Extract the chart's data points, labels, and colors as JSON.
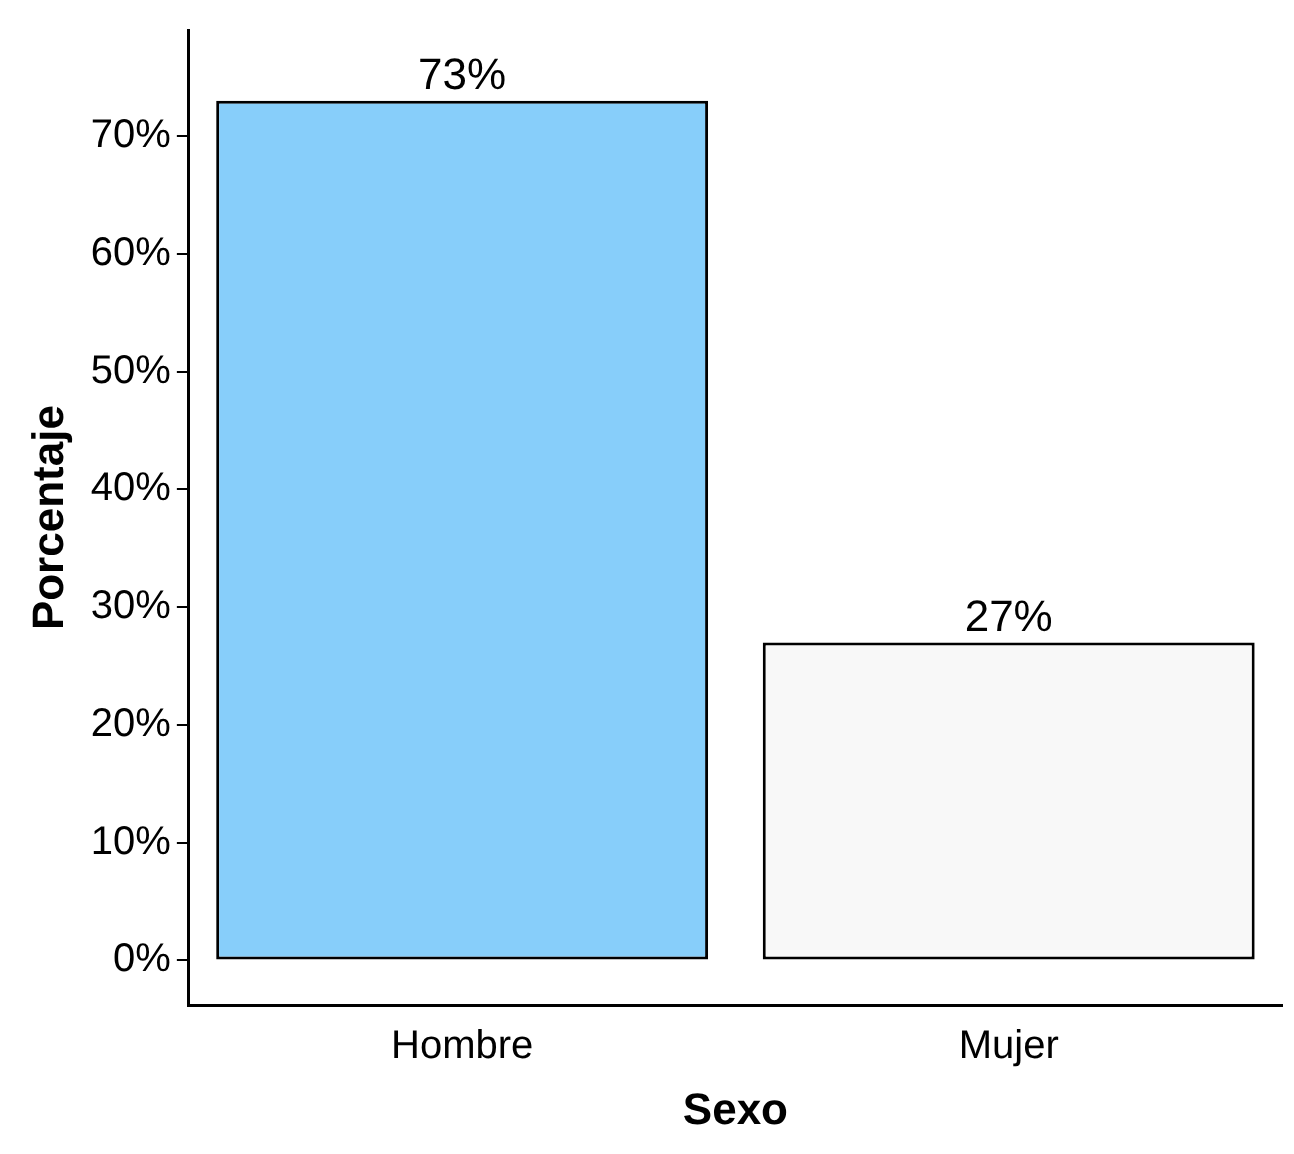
{
  "chart_data": {
    "type": "bar",
    "xlabel": "Sexo",
    "ylabel": "Porcentaje",
    "categories": [
      "Hombre",
      "Mujer"
    ],
    "values": [
      73,
      27
    ],
    "colors": [
      "#87cefa",
      "#f8f8f8"
    ],
    "value_labels": [
      "73%",
      "27%"
    ],
    "ylim": [
      -3.8,
      79
    ],
    "yticks": [
      {
        "value": 0,
        "label": "0%"
      },
      {
        "value": 10,
        "label": "10%"
      },
      {
        "value": 20,
        "label": "20%"
      },
      {
        "value": 30,
        "label": "30%"
      },
      {
        "value": 40,
        "label": "40%"
      },
      {
        "value": 50,
        "label": "50%"
      },
      {
        "value": 60,
        "label": "60%"
      },
      {
        "value": 70,
        "label": "70%"
      }
    ],
    "grid": false,
    "legend": false
  }
}
